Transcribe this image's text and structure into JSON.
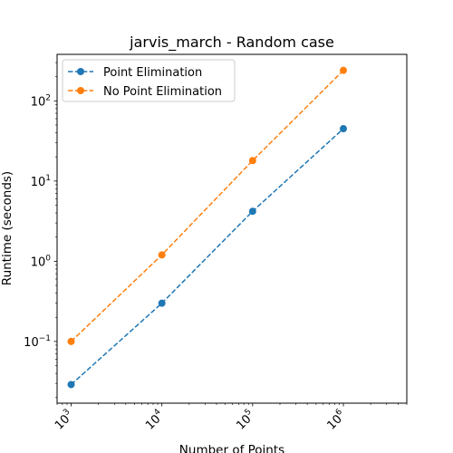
{
  "chart_data": {
    "type": "line",
    "title": "jarvis_march - Random case",
    "xlabel": "Number of Points",
    "ylabel": "Runtime (seconds)",
    "xscale": "log",
    "yscale": "log",
    "xlim": [
      700,
      5000000
    ],
    "ylim": [
      0.017,
      380
    ],
    "grid": false,
    "legend_position": "top-left",
    "x_tick_labels": [
      {
        "value": 1000,
        "base": "10",
        "exp": "3"
      },
      {
        "value": 10000,
        "base": "10",
        "exp": "4"
      },
      {
        "value": 100000,
        "base": "10",
        "exp": "5"
      },
      {
        "value": 1000000,
        "base": "10",
        "exp": "6"
      }
    ],
    "y_tick_labels": [
      {
        "value": 0.1,
        "base": "10",
        "exp": "−1"
      },
      {
        "value": 1,
        "base": "10",
        "exp": "0"
      },
      {
        "value": 10,
        "base": "10",
        "exp": "1"
      },
      {
        "value": 100,
        "base": "10",
        "exp": "2"
      }
    ],
    "x": [
      1000,
      10000,
      100000,
      1000000
    ],
    "series": [
      {
        "name": "Point Elimination",
        "color": "#1f77b4",
        "linestyle": "dashed",
        "marker": "circle",
        "values": [
          0.029,
          0.3,
          4.2,
          45
        ]
      },
      {
        "name": "No Point Elimination",
        "color": "#ff7f0e",
        "linestyle": "dashed",
        "marker": "circle",
        "values": [
          0.1,
          1.2,
          18,
          240
        ]
      }
    ]
  }
}
